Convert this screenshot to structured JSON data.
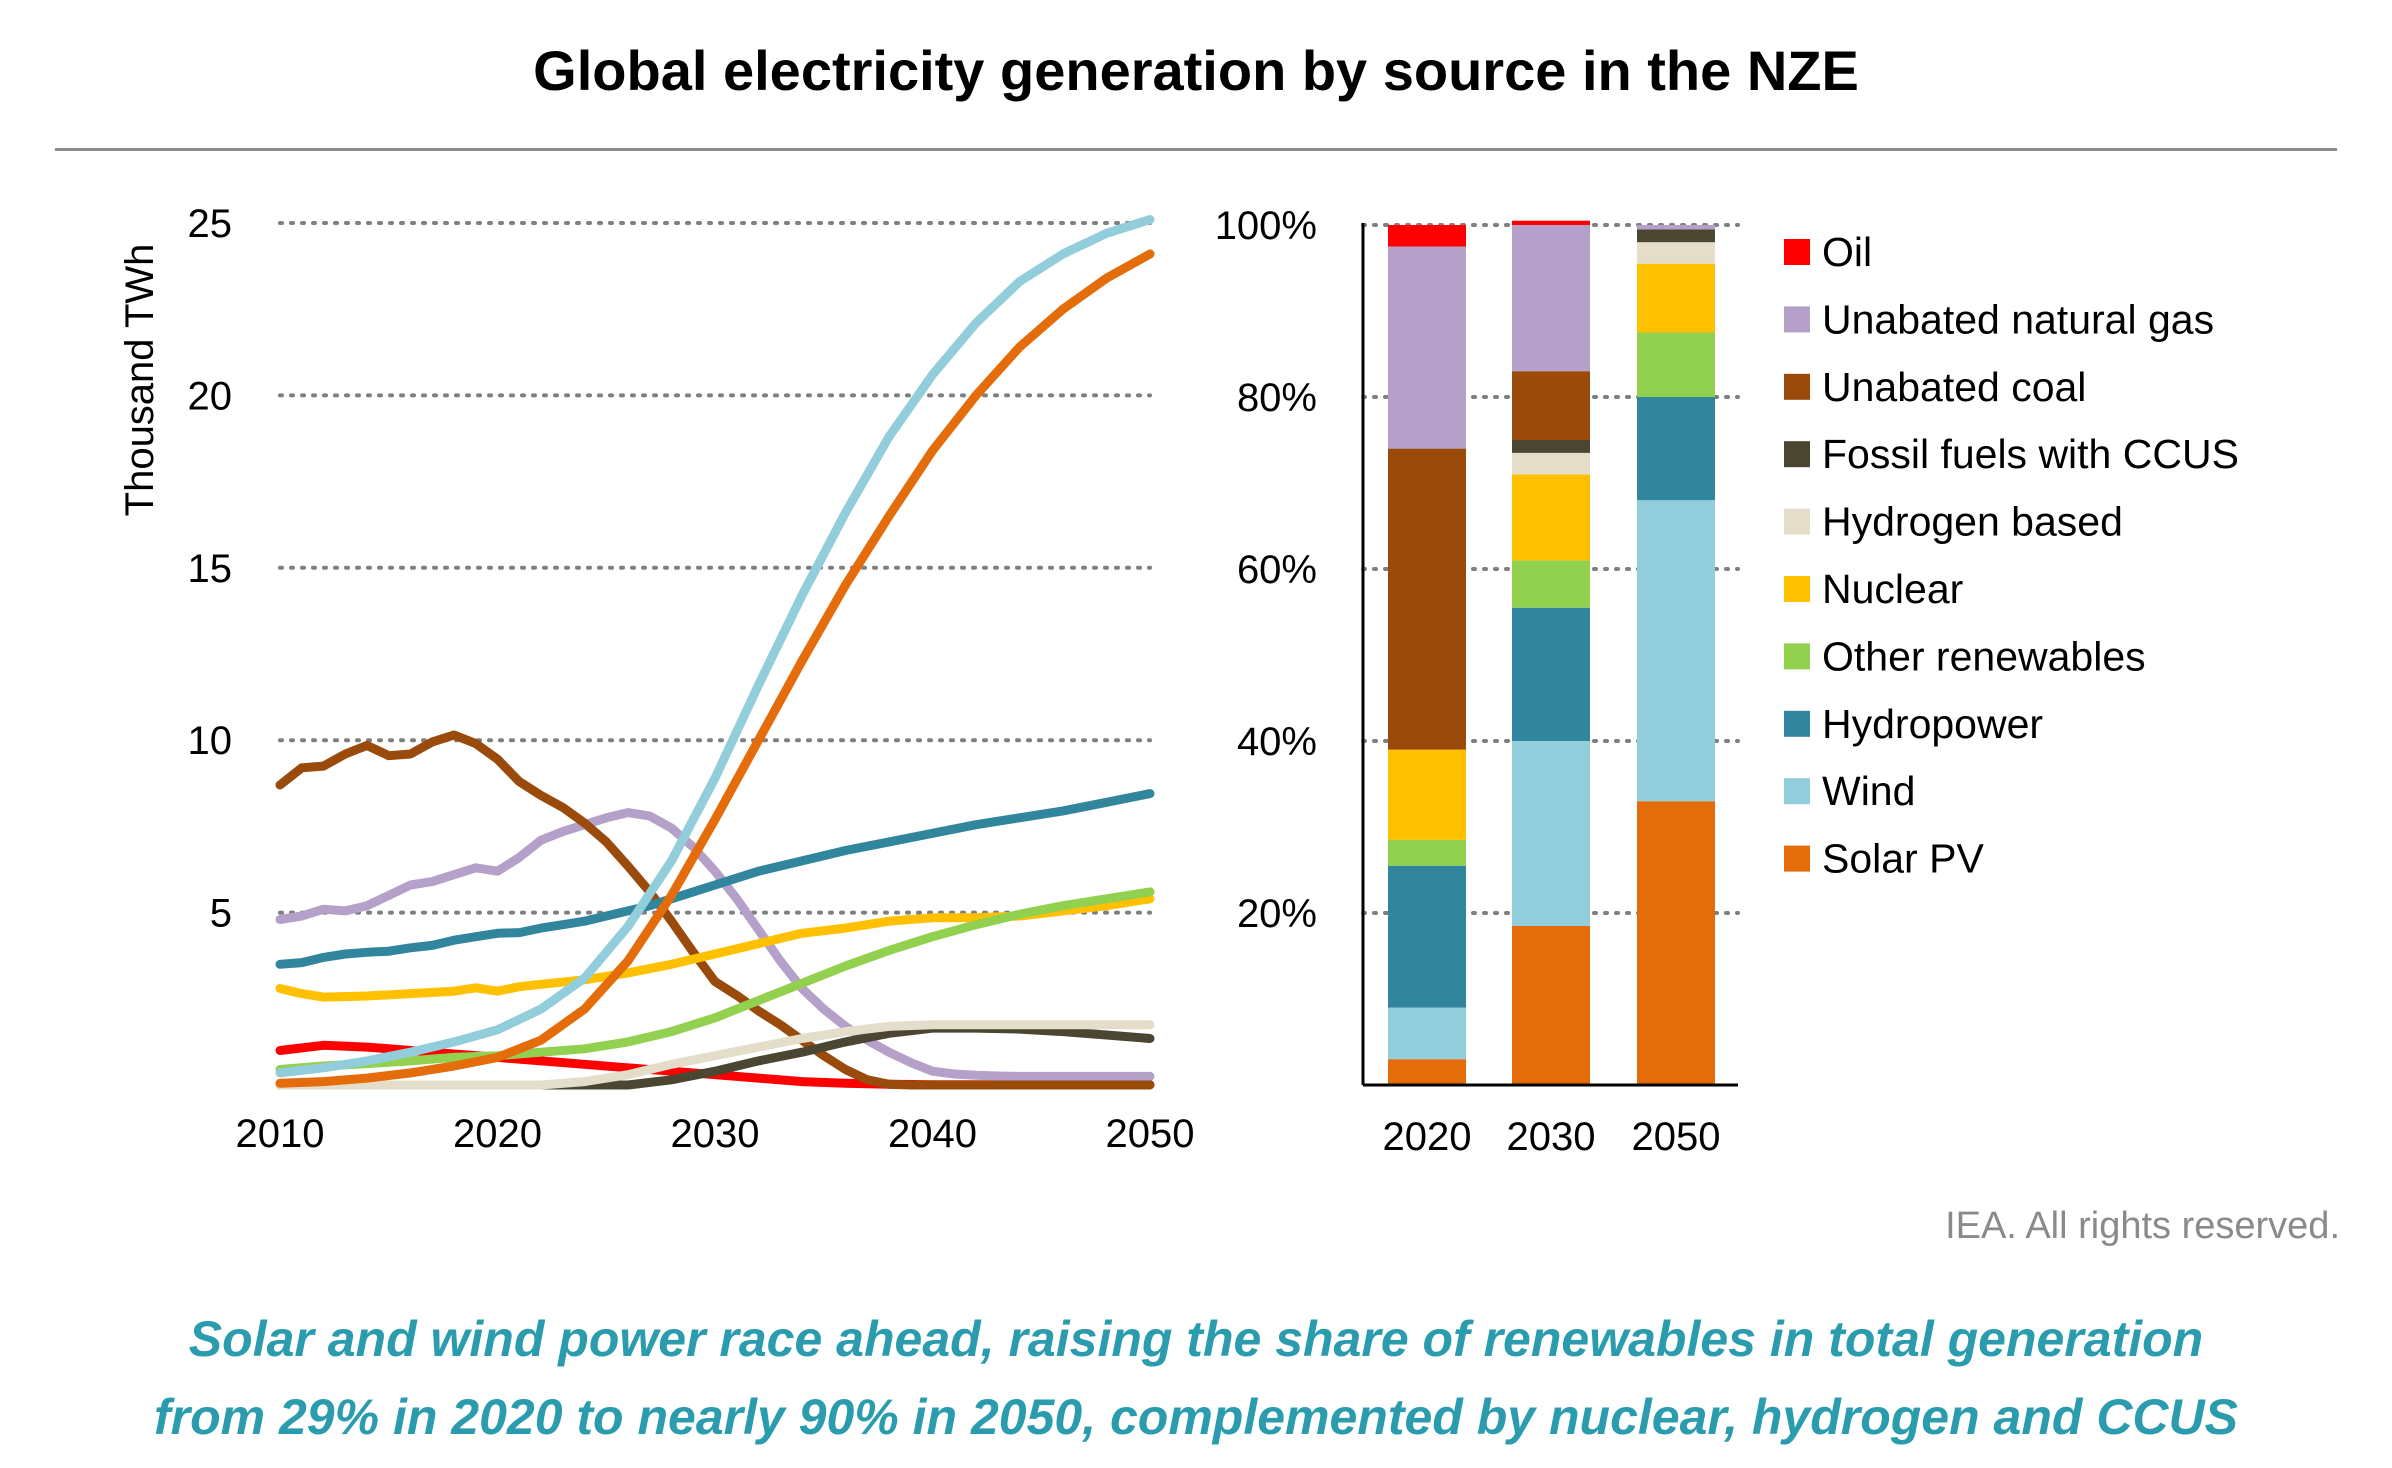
{
  "title": "Global electricity generation by source in the NZE",
  "credit": "IEA. All rights reserved.",
  "caption": {
    "line1": "Solar and wind power race ahead, raising the share of renewables in total generation",
    "line2": "from 29% in 2020 to nearly 90% in 2050, complemented by nuclear, hydrogen and CCUS"
  },
  "chart_data": [
    {
      "type": "line",
      "ylabel": "Thousand TWh",
      "xlabel": "",
      "xlim": [
        2010,
        2050
      ],
      "ylim": [
        0,
        25
      ],
      "yticks": [
        5,
        10,
        15,
        20,
        25
      ],
      "xticks": [
        2010,
        2020,
        2030,
        2040,
        2050
      ],
      "grid": "horizontal dotted",
      "series": [
        {
          "name": "Oil",
          "color": "#ff0000",
          "x": [
            2010,
            2012,
            2014,
            2016,
            2018,
            2020,
            2022,
            2024,
            2026,
            2028,
            2030,
            2032,
            2034,
            2036,
            2038,
            2040,
            2050
          ],
          "y": [
            1.0,
            1.15,
            1.1,
            1.0,
            0.9,
            0.8,
            0.7,
            0.6,
            0.5,
            0.4,
            0.3,
            0.2,
            0.1,
            0.05,
            0.02,
            0.01,
            0.01
          ]
        },
        {
          "name": "Unabated natural gas",
          "color": "#b4a0c8",
          "x": [
            2010,
            2011,
            2012,
            2013,
            2014,
            2015,
            2016,
            2017,
            2018,
            2019,
            2020,
            2021,
            2022,
            2023,
            2024,
            2025,
            2026,
            2027,
            2028,
            2029,
            2030,
            2031,
            2032,
            2033,
            2034,
            2035,
            2036,
            2037,
            2038,
            2039,
            2040,
            2041,
            2042,
            2043,
            2044,
            2045,
            2050
          ],
          "y": [
            4.8,
            4.9,
            5.1,
            5.05,
            5.2,
            5.5,
            5.8,
            5.9,
            6.1,
            6.3,
            6.2,
            6.6,
            7.1,
            7.35,
            7.55,
            7.75,
            7.9,
            7.8,
            7.45,
            6.9,
            6.2,
            5.4,
            4.5,
            3.6,
            2.8,
            2.2,
            1.7,
            1.3,
            0.95,
            0.65,
            0.4,
            0.32,
            0.28,
            0.26,
            0.25,
            0.25,
            0.25
          ]
        },
        {
          "name": "Unabated coal",
          "color": "#9a4a0a",
          "x": [
            2010,
            2011,
            2012,
            2013,
            2014,
            2015,
            2016,
            2017,
            2018,
            2019,
            2020,
            2021,
            2022,
            2023,
            2024,
            2025,
            2026,
            2027,
            2028,
            2029,
            2030,
            2031,
            2032,
            2033,
            2034,
            2035,
            2036,
            2037,
            2038,
            2039,
            2040,
            2050
          ],
          "y": [
            8.7,
            9.2,
            9.25,
            9.6,
            9.85,
            9.55,
            9.6,
            9.95,
            10.15,
            9.9,
            9.45,
            8.8,
            8.4,
            8.05,
            7.6,
            7.05,
            6.35,
            5.6,
            4.75,
            3.85,
            3.0,
            2.6,
            2.15,
            1.75,
            1.3,
            0.85,
            0.45,
            0.15,
            0.02,
            0.0,
            0.0,
            0.0
          ]
        },
        {
          "name": "Fossil fuels with CCUS",
          "color": "#4a4632",
          "x": [
            2010,
            2026,
            2028,
            2030,
            2032,
            2034,
            2036,
            2038,
            2040,
            2042,
            2044,
            2046,
            2048,
            2050
          ],
          "y": [
            0,
            0,
            0.15,
            0.4,
            0.7,
            0.95,
            1.25,
            1.5,
            1.65,
            1.65,
            1.62,
            1.55,
            1.45,
            1.35
          ]
        },
        {
          "name": "Hydrogen based",
          "color": "#e3ddca",
          "x": [
            2010,
            2022,
            2024,
            2026,
            2028,
            2030,
            2032,
            2034,
            2036,
            2038,
            2040,
            2042,
            2044,
            2046,
            2048,
            2050
          ],
          "y": [
            0,
            0,
            0.1,
            0.3,
            0.6,
            0.85,
            1.1,
            1.35,
            1.55,
            1.7,
            1.75,
            1.75,
            1.75,
            1.75,
            1.75,
            1.75
          ]
        },
        {
          "name": "Nuclear",
          "color": "#ffc000",
          "x": [
            2010,
            2011,
            2012,
            2014,
            2016,
            2018,
            2019,
            2020,
            2021,
            2022,
            2024,
            2026,
            2028,
            2030,
            2032,
            2034,
            2036,
            2038,
            2040,
            2042,
            2044,
            2046,
            2048,
            2050
          ],
          "y": [
            2.8,
            2.65,
            2.55,
            2.58,
            2.65,
            2.72,
            2.82,
            2.72,
            2.85,
            2.92,
            3.05,
            3.25,
            3.5,
            3.8,
            4.1,
            4.4,
            4.55,
            4.75,
            4.85,
            4.85,
            4.9,
            5.05,
            5.2,
            5.4
          ]
        },
        {
          "name": "Other renewables",
          "color": "#92d050",
          "x": [
            2010,
            2012,
            2014,
            2016,
            2018,
            2020,
            2022,
            2024,
            2026,
            2028,
            2030,
            2032,
            2034,
            2036,
            2038,
            2040,
            2042,
            2044,
            2046,
            2048,
            2050
          ],
          "y": [
            0.45,
            0.55,
            0.62,
            0.7,
            0.8,
            0.85,
            0.95,
            1.05,
            1.25,
            1.55,
            1.95,
            2.45,
            2.95,
            3.45,
            3.9,
            4.3,
            4.65,
            4.95,
            5.2,
            5.4,
            5.6
          ]
        },
        {
          "name": "Hydropower",
          "color": "#31859c",
          "x": [
            2010,
            2011,
            2012,
            2013,
            2014,
            2015,
            2016,
            2017,
            2018,
            2019,
            2020,
            2021,
            2022,
            2023,
            2024,
            2025,
            2026,
            2027,
            2028,
            2030,
            2032,
            2034,
            2036,
            2038,
            2040,
            2042,
            2044,
            2046,
            2048,
            2050
          ],
          "y": [
            3.5,
            3.55,
            3.7,
            3.8,
            3.85,
            3.88,
            3.98,
            4.05,
            4.2,
            4.3,
            4.4,
            4.42,
            4.55,
            4.65,
            4.75,
            4.9,
            5.05,
            5.2,
            5.4,
            5.8,
            6.2,
            6.5,
            6.8,
            7.05,
            7.3,
            7.55,
            7.75,
            7.95,
            8.2,
            8.45
          ]
        },
        {
          "name": "Wind",
          "color": "#92cddc",
          "x": [
            2010,
            2012,
            2014,
            2016,
            2018,
            2020,
            2022,
            2024,
            2026,
            2028,
            2030,
            2032,
            2034,
            2036,
            2038,
            2040,
            2042,
            2044,
            2046,
            2048,
            2050
          ],
          "y": [
            0.35,
            0.5,
            0.7,
            0.95,
            1.25,
            1.6,
            2.2,
            3.1,
            4.6,
            6.5,
            8.9,
            11.6,
            14.2,
            16.6,
            18.8,
            20.6,
            22.1,
            23.3,
            24.1,
            24.7,
            25.1
          ]
        },
        {
          "name": "Solar PV",
          "color": "#e46c0a",
          "x": [
            2010,
            2012,
            2014,
            2016,
            2018,
            2020,
            2022,
            2024,
            2026,
            2028,
            2030,
            2032,
            2034,
            2036,
            2038,
            2040,
            2042,
            2044,
            2046,
            2048,
            2050
          ],
          "y": [
            0.05,
            0.1,
            0.2,
            0.35,
            0.55,
            0.8,
            1.3,
            2.2,
            3.6,
            5.5,
            7.7,
            10.0,
            12.3,
            14.5,
            16.5,
            18.4,
            20.0,
            21.4,
            22.5,
            23.4,
            24.1
          ]
        }
      ]
    },
    {
      "type": "bar",
      "stacked": true,
      "categories": [
        "2020",
        "2030",
        "2050"
      ],
      "ylim": [
        0,
        100
      ],
      "yticks": [
        "20%",
        "40%",
        "60%",
        "80%",
        "100%"
      ],
      "unit": "%",
      "series": [
        {
          "name": "Solar PV",
          "color": "#e46c0a",
          "values": [
            3,
            18.5,
            33
          ]
        },
        {
          "name": "Wind",
          "color": "#92cddc",
          "values": [
            6,
            21.5,
            35
          ]
        },
        {
          "name": "Hydropower",
          "color": "#31859c",
          "values": [
            16.5,
            15.5,
            12
          ]
        },
        {
          "name": "Other renewables",
          "color": "#92d050",
          "values": [
            3,
            5.5,
            7.5
          ]
        },
        {
          "name": "Nuclear",
          "color": "#ffc000",
          "values": [
            10.5,
            10,
            8
          ]
        },
        {
          "name": "Hydrogen based",
          "color": "#e3ddca",
          "values": [
            0,
            2.5,
            2.5
          ]
        },
        {
          "name": "Fossil fuels with CCUS",
          "color": "#4a4632",
          "values": [
            0,
            1.5,
            1.5
          ]
        },
        {
          "name": "Unabated coal",
          "color": "#9a4a0a",
          "values": [
            35,
            8,
            0
          ]
        },
        {
          "name": "Unabated natural gas",
          "color": "#b4a0c8",
          "values": [
            23.5,
            17,
            0.5
          ]
        },
        {
          "name": "Oil",
          "color": "#ff0000",
          "values": [
            2.5,
            0.5,
            0
          ]
        }
      ]
    }
  ],
  "legend": {
    "placement": "right",
    "items": [
      {
        "label": "Oil",
        "color": "#ff0000"
      },
      {
        "label": "Unabated natural gas",
        "color": "#b4a0c8"
      },
      {
        "label": "Unabated coal",
        "color": "#9a4a0a"
      },
      {
        "label": "Fossil fuels with CCUS",
        "color": "#4a4632"
      },
      {
        "label": "Hydrogen based",
        "color": "#e3ddca"
      },
      {
        "label": "Nuclear",
        "color": "#ffc000"
      },
      {
        "label": "Other renewables",
        "color": "#92d050"
      },
      {
        "label": "Hydropower",
        "color": "#31859c"
      },
      {
        "label": "Wind",
        "color": "#92cddc"
      },
      {
        "label": "Solar PV",
        "color": "#e46c0a"
      }
    ]
  }
}
